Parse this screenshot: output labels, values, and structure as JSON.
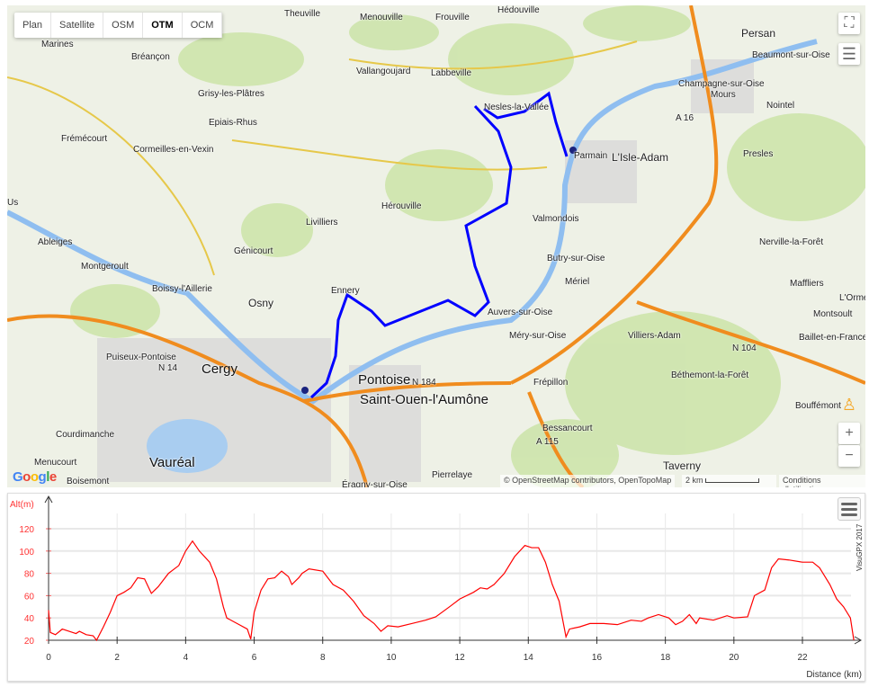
{
  "map": {
    "tabs": [
      {
        "label": "Plan"
      },
      {
        "label": "Satellite"
      },
      {
        "label": "OSM"
      },
      {
        "label": "OTM",
        "active": true
      },
      {
        "label": "OCM"
      }
    ],
    "towns": [
      "Theuville",
      "Menouville",
      "Frouville",
      "Hédouville",
      "Persan",
      "Marines",
      "Bréançon",
      "Vallangoujard",
      "Labbeville",
      "Beaumont-sur-Oise",
      "Champagne-sur-Oise",
      "Grisy-les-Plâtres",
      "Epiais-Rhus",
      "Nesles-la-Vallée",
      "Mours",
      "Nointel",
      "Frémécourt",
      "Cormeilles-en-Vexin",
      "Parmain",
      "L'Isle-Adam",
      "Presles",
      "Us",
      "Hérouville",
      "Valmondois",
      "Livilliers",
      "Ableiges",
      "Génicourt",
      "Nerville-la-Forêt",
      "Montgeroult",
      "Butry-sur-Oise",
      "Boissy-l'Aillerie",
      "Ennery",
      "Mériel",
      "Maffliers",
      "L'Orme",
      "Auvers-sur-Oise",
      "Montsoult",
      "Osny",
      "Méry-sur-Oise",
      "Villiers-Adam",
      "Baillet-en-France",
      "Puiseux-Pontoise",
      "Cergy",
      "Pontoise",
      "N 104",
      "Béthemont-la-Forêt",
      "N 14",
      "N 184",
      "Frépillon",
      "Saint-Ouen-l'Aumône",
      "Bouffémont",
      "Courdimanche",
      "Bessancourt",
      "Menucourt",
      "Vauréal",
      "Taverny",
      "Pierrelaye",
      "Boisemont",
      "Éragny-sur-Oise",
      "A 16",
      "A 115"
    ],
    "attribution": "© OpenStreetMap contributors, OpenTopoMap",
    "scale_label": "2 km",
    "terms_label": "Conditions d'utilisation",
    "google_logo": "Google",
    "controls": {
      "fullscreen": "fullscreen-icon",
      "layers": "menu-icon",
      "zoom_in": "+",
      "zoom_out": "−",
      "pegman": "pegman-icon"
    },
    "route_color": "#0000ff"
  },
  "chart_data": {
    "type": "line",
    "ylabel": "Alt(m)",
    "xlabel": "Distance (km)",
    "credit": "VisuGPX 2017",
    "xlim": [
      0,
      23.5
    ],
    "ylim": [
      20,
      130
    ],
    "xticks": [
      0,
      2,
      4,
      6,
      8,
      10,
      12,
      14,
      16,
      18,
      20,
      22
    ],
    "yticks": [
      20,
      40,
      60,
      80,
      100,
      120
    ],
    "grid": true,
    "color": "#ff0000",
    "series": [
      {
        "x": [
          0,
          0.05,
          0.2,
          0.4,
          0.6,
          0.8,
          0.9,
          1.1,
          1.3,
          1.4,
          1.6,
          1.8,
          2.0,
          2.2,
          2.4,
          2.6,
          2.8,
          3.0,
          3.2,
          3.5,
          3.8,
          4.0,
          4.2,
          4.4,
          4.7,
          4.9,
          5.1,
          5.2,
          5.5,
          5.8,
          5.9,
          6.0,
          6.2,
          6.4,
          6.6,
          6.8,
          7.0,
          7.1,
          7.3,
          7.4,
          7.6,
          8.0,
          8.3,
          8.6,
          8.9,
          9.2,
          9.5,
          9.7,
          9.9,
          10.2,
          10.6,
          11.0,
          11.3,
          11.7,
          12.0,
          12.4,
          12.6,
          12.8,
          13.0,
          13.3,
          13.6,
          13.9,
          14.1,
          14.3,
          14.5,
          14.7,
          14.9,
          15.1,
          15.2,
          15.5,
          15.8,
          16.2,
          16.6,
          17.0,
          17.3,
          17.5,
          17.8,
          18.1,
          18.3,
          18.5,
          18.7,
          18.9,
          19.0,
          19.4,
          19.8,
          20.0,
          20.4,
          20.6,
          20.9,
          21.1,
          21.3,
          21.6,
          22.0,
          22.3,
          22.5,
          22.8,
          23.0,
          23.2,
          23.4,
          23.5
        ],
        "y": [
          47,
          27,
          25,
          30,
          28,
          26,
          28,
          25,
          24,
          20,
          32,
          45,
          60,
          63,
          67,
          76,
          75,
          62,
          68,
          80,
          87,
          100,
          109,
          100,
          90,
          75,
          50,
          40,
          35,
          30,
          21,
          45,
          65,
          75,
          76,
          82,
          77,
          70,
          76,
          80,
          84,
          82,
          70,
          65,
          55,
          42,
          35,
          28,
          33,
          32,
          35,
          38,
          41,
          50,
          57,
          63,
          67,
          66,
          70,
          80,
          95,
          105,
          103,
          103,
          90,
          70,
          55,
          23,
          30,
          32,
          35,
          35,
          34,
          38,
          37,
          40,
          43,
          40,
          34,
          37,
          43,
          35,
          40,
          38,
          42,
          40,
          41,
          60,
          65,
          85,
          93,
          92,
          90,
          90,
          85,
          70,
          57,
          50,
          40,
          20
        ]
      }
    ]
  }
}
